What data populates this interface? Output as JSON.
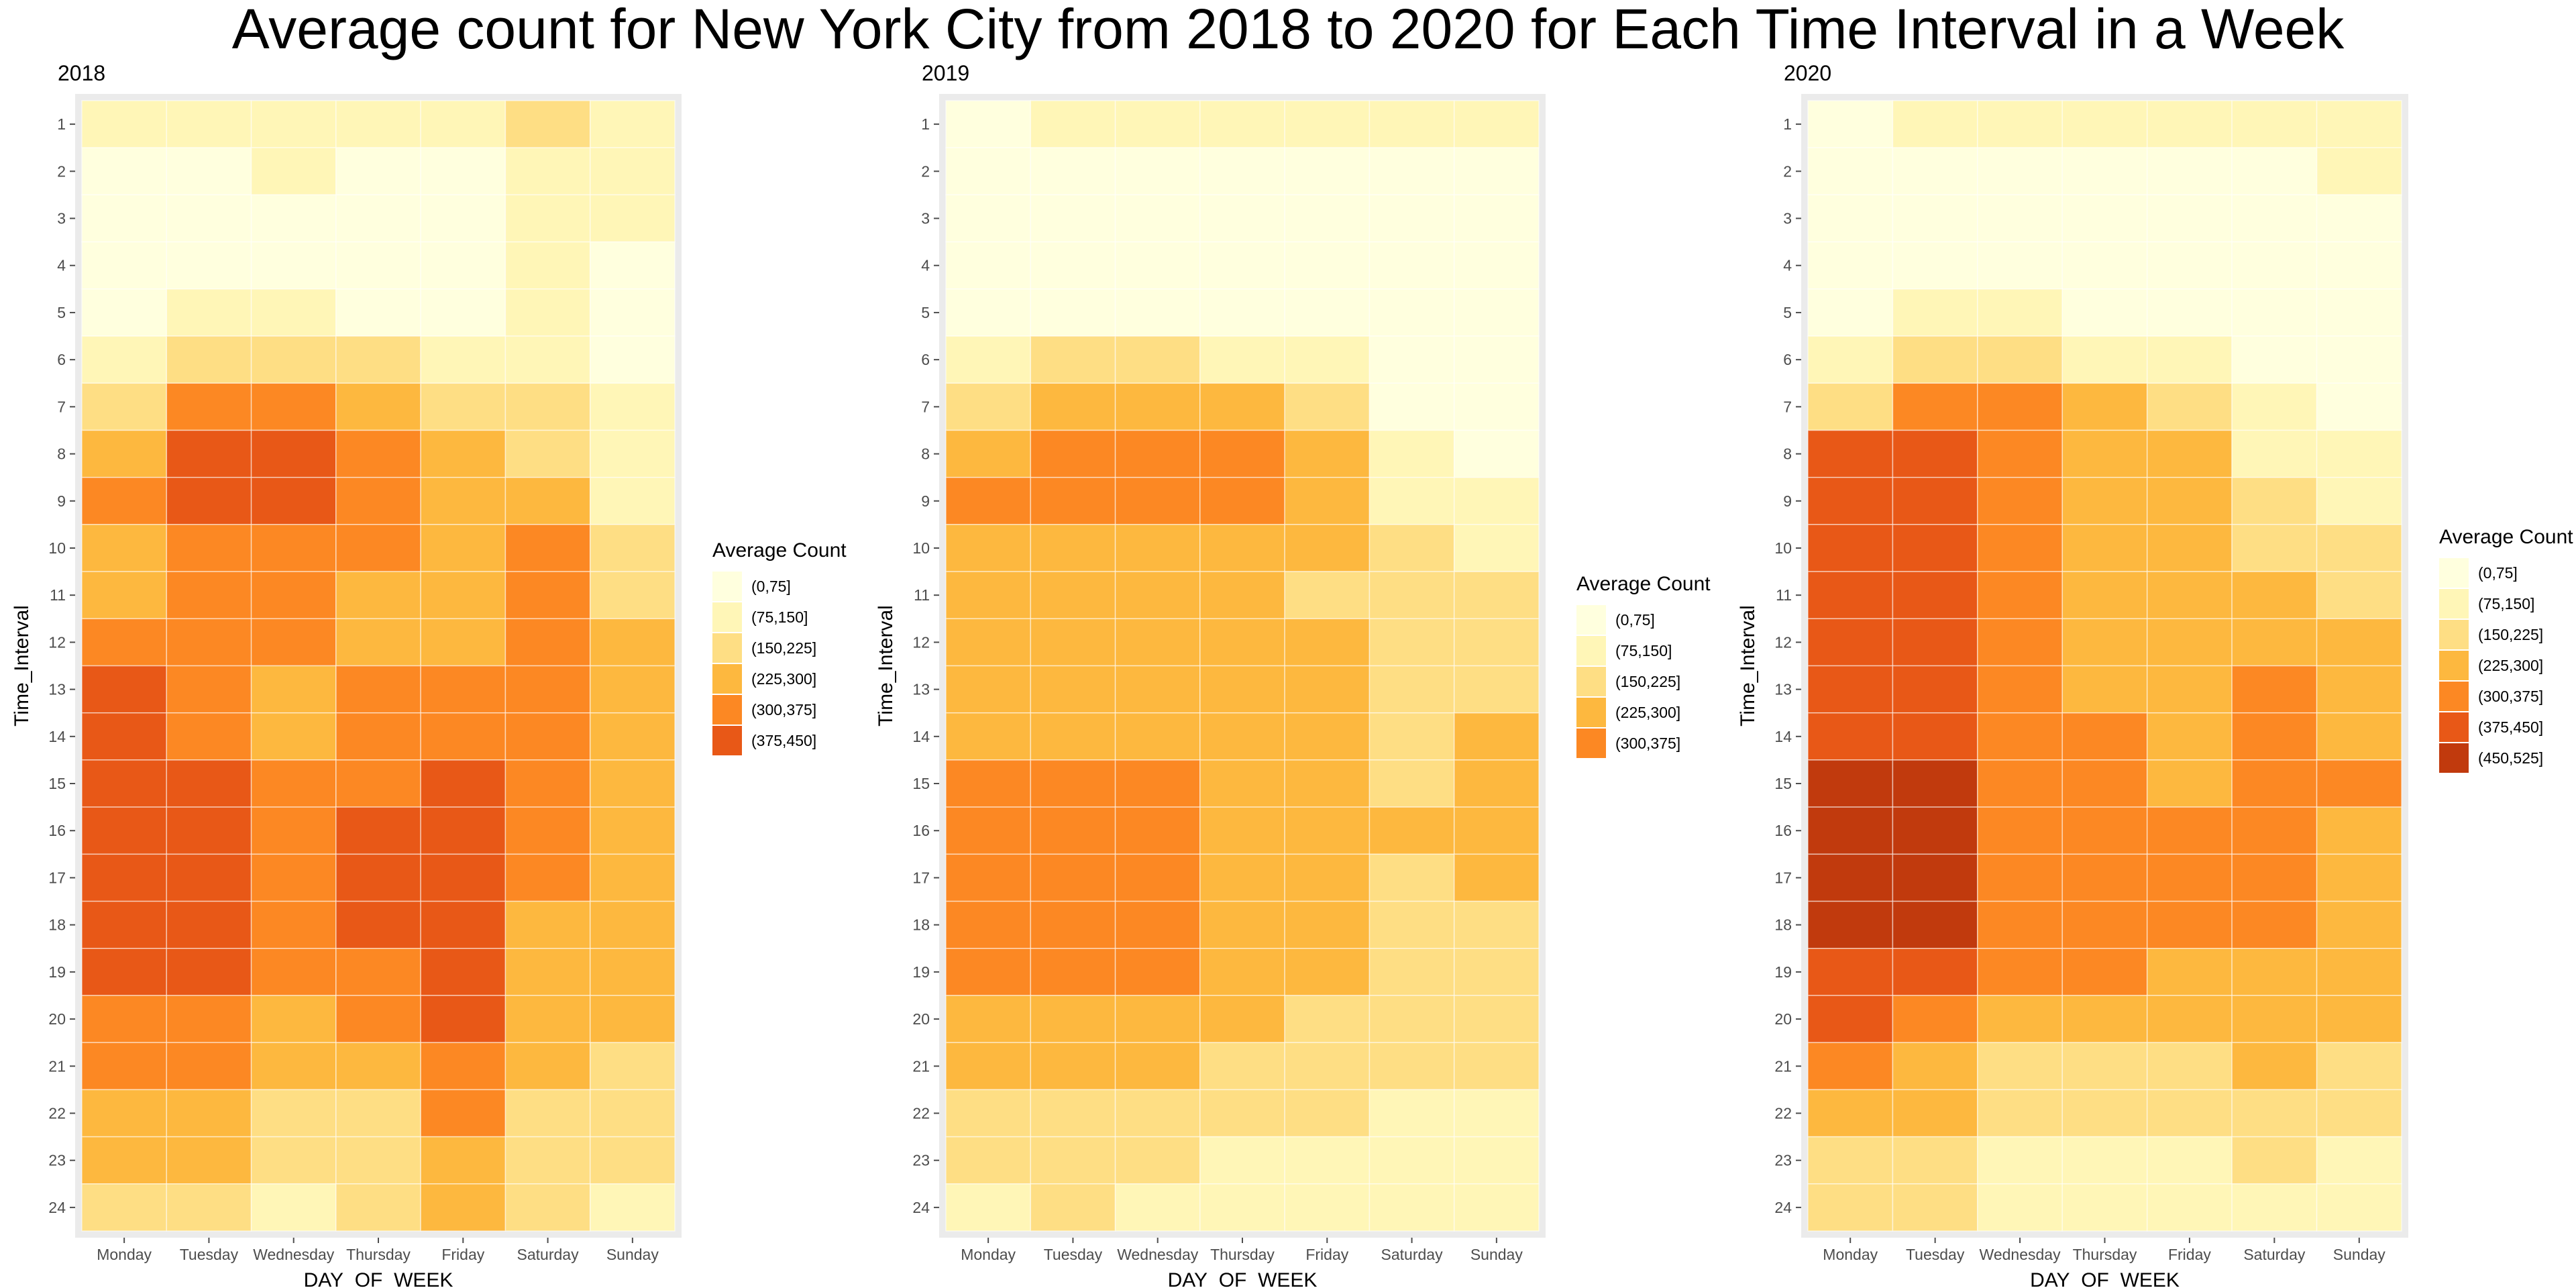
{
  "title": "Average count for New York City from 2018 to 2020 for Each Time Interval in a Week",
  "palette": {
    "(0,75]": "#ffffde",
    "(75,150]": "#fff6b7",
    "(150,225]": "#fede84",
    "(225,300]": "#fdb83f",
    "(300,375]": "#fc8823",
    "(375,450]": "#e85817",
    "(450,525]": "#c13a0d"
  },
  "chart_data": [
    {
      "type": "heatmap",
      "title": "2018",
      "xlabel": "DAY_OF_WEEK",
      "ylabel": "Time_Interval",
      "x": [
        "Monday",
        "Tuesday",
        "Wednesday",
        "Thursday",
        "Friday",
        "Saturday",
        "Sunday"
      ],
      "y": [
        "1",
        "2",
        "3",
        "4",
        "5",
        "6",
        "7",
        "8",
        "9",
        "10",
        "11",
        "12",
        "13",
        "14",
        "15",
        "16",
        "17",
        "18",
        "19",
        "20",
        "21",
        "22",
        "23",
        "24"
      ],
      "legend_title": "Average Count",
      "legend": [
        "(0,75]",
        "(75,150]",
        "(150,225]",
        "(225,300]",
        "(300,375]",
        "(375,450]"
      ],
      "legend_placement": "right",
      "grid": true,
      "values": [
        [
          "(75,150]",
          "(75,150]",
          "(75,150]",
          "(75,150]",
          "(75,150]",
          "(150,225]",
          "(75,150]"
        ],
        [
          "(0,75]",
          "(0,75]",
          "(75,150]",
          "(0,75]",
          "(0,75]",
          "(75,150]",
          "(75,150]"
        ],
        [
          "(0,75]",
          "(0,75]",
          "(0,75]",
          "(0,75]",
          "(0,75]",
          "(75,150]",
          "(75,150]"
        ],
        [
          "(0,75]",
          "(0,75]",
          "(0,75]",
          "(0,75]",
          "(0,75]",
          "(75,150]",
          "(0,75]"
        ],
        [
          "(0,75]",
          "(75,150]",
          "(75,150]",
          "(0,75]",
          "(0,75]",
          "(75,150]",
          "(0,75]"
        ],
        [
          "(75,150]",
          "(150,225]",
          "(150,225]",
          "(150,225]",
          "(75,150]",
          "(75,150]",
          "(0,75]"
        ],
        [
          "(150,225]",
          "(300,375]",
          "(300,375]",
          "(225,300]",
          "(150,225]",
          "(150,225]",
          "(75,150]"
        ],
        [
          "(225,300]",
          "(375,450]",
          "(375,450]",
          "(300,375]",
          "(225,300]",
          "(150,225]",
          "(75,150]"
        ],
        [
          "(300,375]",
          "(375,450]",
          "(375,450]",
          "(300,375]",
          "(225,300]",
          "(225,300]",
          "(75,150]"
        ],
        [
          "(225,300]",
          "(300,375]",
          "(300,375]",
          "(300,375]",
          "(225,300]",
          "(300,375]",
          "(150,225]"
        ],
        [
          "(225,300]",
          "(300,375]",
          "(300,375]",
          "(225,300]",
          "(225,300]",
          "(300,375]",
          "(150,225]"
        ],
        [
          "(300,375]",
          "(300,375]",
          "(300,375]",
          "(225,300]",
          "(225,300]",
          "(300,375]",
          "(225,300]"
        ],
        [
          "(375,450]",
          "(300,375]",
          "(225,300]",
          "(300,375]",
          "(300,375]",
          "(300,375]",
          "(225,300]"
        ],
        [
          "(375,450]",
          "(300,375]",
          "(225,300]",
          "(300,375]",
          "(300,375]",
          "(300,375]",
          "(225,300]"
        ],
        [
          "(375,450]",
          "(375,450]",
          "(300,375]",
          "(300,375]",
          "(375,450]",
          "(300,375]",
          "(225,300]"
        ],
        [
          "(375,450]",
          "(375,450]",
          "(300,375]",
          "(375,450]",
          "(375,450]",
          "(300,375]",
          "(225,300]"
        ],
        [
          "(375,450]",
          "(375,450]",
          "(300,375]",
          "(375,450]",
          "(375,450]",
          "(300,375]",
          "(225,300]"
        ],
        [
          "(375,450]",
          "(375,450]",
          "(300,375]",
          "(375,450]",
          "(375,450]",
          "(225,300]",
          "(225,300]"
        ],
        [
          "(375,450]",
          "(375,450]",
          "(300,375]",
          "(300,375]",
          "(375,450]",
          "(225,300]",
          "(225,300]"
        ],
        [
          "(300,375]",
          "(300,375]",
          "(225,300]",
          "(300,375]",
          "(375,450]",
          "(225,300]",
          "(225,300]"
        ],
        [
          "(300,375]",
          "(300,375]",
          "(225,300]",
          "(225,300]",
          "(300,375]",
          "(225,300]",
          "(150,225]"
        ],
        [
          "(225,300]",
          "(225,300]",
          "(150,225]",
          "(150,225]",
          "(300,375]",
          "(150,225]",
          "(150,225]"
        ],
        [
          "(225,300]",
          "(225,300]",
          "(150,225]",
          "(150,225]",
          "(225,300]",
          "(150,225]",
          "(150,225]"
        ],
        [
          "(150,225]",
          "(150,225]",
          "(75,150]",
          "(150,225]",
          "(225,300]",
          "(150,225]",
          "(75,150]"
        ]
      ]
    },
    {
      "type": "heatmap",
      "title": "2019",
      "xlabel": "DAY_OF_WEEK",
      "ylabel": "Time_Interval",
      "x": [
        "Monday",
        "Tuesday",
        "Wednesday",
        "Thursday",
        "Friday",
        "Saturday",
        "Sunday"
      ],
      "y": [
        "1",
        "2",
        "3",
        "4",
        "5",
        "6",
        "7",
        "8",
        "9",
        "10",
        "11",
        "12",
        "13",
        "14",
        "15",
        "16",
        "17",
        "18",
        "19",
        "20",
        "21",
        "22",
        "23",
        "24"
      ],
      "legend_title": "Average Count",
      "legend": [
        "(0,75]",
        "(75,150]",
        "(150,225]",
        "(225,300]",
        "(300,375]"
      ],
      "legend_placement": "right",
      "grid": true,
      "values": [
        [
          "(0,75]",
          "(75,150]",
          "(75,150]",
          "(75,150]",
          "(75,150]",
          "(75,150]",
          "(75,150]"
        ],
        [
          "(0,75]",
          "(0,75]",
          "(0,75]",
          "(0,75]",
          "(0,75]",
          "(0,75]",
          "(0,75]"
        ],
        [
          "(0,75]",
          "(0,75]",
          "(0,75]",
          "(0,75]",
          "(0,75]",
          "(0,75]",
          "(0,75]"
        ],
        [
          "(0,75]",
          "(0,75]",
          "(0,75]",
          "(0,75]",
          "(0,75]",
          "(0,75]",
          "(0,75]"
        ],
        [
          "(0,75]",
          "(0,75]",
          "(0,75]",
          "(0,75]",
          "(0,75]",
          "(0,75]",
          "(0,75]"
        ],
        [
          "(75,150]",
          "(150,225]",
          "(150,225]",
          "(75,150]",
          "(75,150]",
          "(0,75]",
          "(0,75]"
        ],
        [
          "(150,225]",
          "(225,300]",
          "(225,300]",
          "(225,300]",
          "(150,225]",
          "(0,75]",
          "(0,75]"
        ],
        [
          "(225,300]",
          "(300,375]",
          "(300,375]",
          "(300,375]",
          "(225,300]",
          "(75,150]",
          "(0,75]"
        ],
        [
          "(300,375]",
          "(300,375]",
          "(300,375]",
          "(300,375]",
          "(225,300]",
          "(75,150]",
          "(75,150]"
        ],
        [
          "(225,300]",
          "(225,300]",
          "(225,300]",
          "(225,300]",
          "(225,300]",
          "(150,225]",
          "(75,150]"
        ],
        [
          "(225,300]",
          "(225,300]",
          "(225,300]",
          "(225,300]",
          "(150,225]",
          "(150,225]",
          "(150,225]"
        ],
        [
          "(225,300]",
          "(225,300]",
          "(225,300]",
          "(225,300]",
          "(225,300]",
          "(150,225]",
          "(150,225]"
        ],
        [
          "(225,300]",
          "(225,300]",
          "(225,300]",
          "(225,300]",
          "(225,300]",
          "(150,225]",
          "(150,225]"
        ],
        [
          "(225,300]",
          "(225,300]",
          "(225,300]",
          "(225,300]",
          "(225,300]",
          "(150,225]",
          "(225,300]"
        ],
        [
          "(300,375]",
          "(300,375]",
          "(300,375]",
          "(225,300]",
          "(225,300]",
          "(150,225]",
          "(225,300]"
        ],
        [
          "(300,375]",
          "(300,375]",
          "(300,375]",
          "(225,300]",
          "(225,300]",
          "(225,300]",
          "(225,300]"
        ],
        [
          "(300,375]",
          "(300,375]",
          "(300,375]",
          "(225,300]",
          "(225,300]",
          "(150,225]",
          "(225,300]"
        ],
        [
          "(300,375]",
          "(300,375]",
          "(300,375]",
          "(225,300]",
          "(225,300]",
          "(150,225]",
          "(150,225]"
        ],
        [
          "(300,375]",
          "(300,375]",
          "(300,375]",
          "(225,300]",
          "(225,300]",
          "(150,225]",
          "(150,225]"
        ],
        [
          "(225,300]",
          "(225,300]",
          "(225,300]",
          "(225,300]",
          "(150,225]",
          "(150,225]",
          "(150,225]"
        ],
        [
          "(225,300]",
          "(225,300]",
          "(225,300]",
          "(150,225]",
          "(150,225]",
          "(150,225]",
          "(150,225]"
        ],
        [
          "(150,225]",
          "(150,225]",
          "(150,225]",
          "(150,225]",
          "(150,225]",
          "(75,150]",
          "(75,150]"
        ],
        [
          "(150,225]",
          "(150,225]",
          "(150,225]",
          "(75,150]",
          "(75,150]",
          "(75,150]",
          "(75,150]"
        ],
        [
          "(75,150]",
          "(150,225]",
          "(75,150]",
          "(75,150]",
          "(75,150]",
          "(75,150]",
          "(75,150]"
        ]
      ]
    },
    {
      "type": "heatmap",
      "title": "2020",
      "xlabel": "DAY_OF_WEEK",
      "ylabel": "Time_Interval",
      "x": [
        "Monday",
        "Tuesday",
        "Wednesday",
        "Thursday",
        "Friday",
        "Saturday",
        "Sunday"
      ],
      "y": [
        "1",
        "2",
        "3",
        "4",
        "5",
        "6",
        "7",
        "8",
        "9",
        "10",
        "11",
        "12",
        "13",
        "14",
        "15",
        "16",
        "17",
        "18",
        "19",
        "20",
        "21",
        "22",
        "23",
        "24"
      ],
      "legend_title": "Average Count",
      "legend": [
        "(0,75]",
        "(75,150]",
        "(150,225]",
        "(225,300]",
        "(300,375]",
        "(375,450]",
        "(450,525]"
      ],
      "legend_placement": "right",
      "grid": true,
      "values": [
        [
          "(0,75]",
          "(75,150]",
          "(75,150]",
          "(75,150]",
          "(75,150]",
          "(75,150]",
          "(75,150]"
        ],
        [
          "(0,75]",
          "(0,75]",
          "(0,75]",
          "(0,75]",
          "(0,75]",
          "(0,75]",
          "(75,150]"
        ],
        [
          "(0,75]",
          "(0,75]",
          "(0,75]",
          "(0,75]",
          "(0,75]",
          "(0,75]",
          "(0,75]"
        ],
        [
          "(0,75]",
          "(0,75]",
          "(0,75]",
          "(0,75]",
          "(0,75]",
          "(0,75]",
          "(0,75]"
        ],
        [
          "(0,75]",
          "(75,150]",
          "(75,150]",
          "(0,75]",
          "(0,75]",
          "(0,75]",
          "(0,75]"
        ],
        [
          "(75,150]",
          "(150,225]",
          "(150,225]",
          "(75,150]",
          "(75,150]",
          "(0,75]",
          "(0,75]"
        ],
        [
          "(150,225]",
          "(300,375]",
          "(300,375]",
          "(225,300]",
          "(150,225]",
          "(75,150]",
          "(0,75]"
        ],
        [
          "(375,450]",
          "(375,450]",
          "(300,375]",
          "(225,300]",
          "(225,300]",
          "(75,150]",
          "(75,150]"
        ],
        [
          "(375,450]",
          "(375,450]",
          "(300,375]",
          "(225,300]",
          "(225,300]",
          "(150,225]",
          "(75,150]"
        ],
        [
          "(375,450]",
          "(375,450]",
          "(300,375]",
          "(225,300]",
          "(225,300]",
          "(150,225]",
          "(150,225]"
        ],
        [
          "(375,450]",
          "(375,450]",
          "(300,375]",
          "(225,300]",
          "(225,300]",
          "(225,300]",
          "(150,225]"
        ],
        [
          "(375,450]",
          "(375,450]",
          "(300,375]",
          "(225,300]",
          "(225,300]",
          "(225,300]",
          "(225,300]"
        ],
        [
          "(375,450]",
          "(375,450]",
          "(300,375]",
          "(225,300]",
          "(225,300]",
          "(300,375]",
          "(225,300]"
        ],
        [
          "(375,450]",
          "(375,450]",
          "(300,375]",
          "(300,375]",
          "(225,300]",
          "(300,375]",
          "(225,300]"
        ],
        [
          "(450,525]",
          "(450,525]",
          "(300,375]",
          "(300,375]",
          "(225,300]",
          "(300,375]",
          "(300,375]"
        ],
        [
          "(450,525]",
          "(450,525]",
          "(300,375]",
          "(300,375]",
          "(300,375]",
          "(300,375]",
          "(225,300]"
        ],
        [
          "(450,525]",
          "(450,525]",
          "(300,375]",
          "(300,375]",
          "(300,375]",
          "(300,375]",
          "(225,300]"
        ],
        [
          "(450,525]",
          "(450,525]",
          "(300,375]",
          "(300,375]",
          "(300,375]",
          "(300,375]",
          "(225,300]"
        ],
        [
          "(375,450]",
          "(375,450]",
          "(300,375]",
          "(300,375]",
          "(225,300]",
          "(225,300]",
          "(225,300]"
        ],
        [
          "(375,450]",
          "(300,375]",
          "(225,300]",
          "(225,300]",
          "(225,300]",
          "(225,300]",
          "(225,300]"
        ],
        [
          "(300,375]",
          "(225,300]",
          "(150,225]",
          "(150,225]",
          "(150,225]",
          "(225,300]",
          "(150,225]"
        ],
        [
          "(225,300]",
          "(225,300]",
          "(150,225]",
          "(150,225]",
          "(150,225]",
          "(150,225]",
          "(150,225]"
        ],
        [
          "(150,225]",
          "(150,225]",
          "(75,150]",
          "(75,150]",
          "(75,150]",
          "(150,225]",
          "(75,150]"
        ],
        [
          "(150,225]",
          "(150,225]",
          "(75,150]",
          "(75,150]",
          "(75,150]",
          "(75,150]",
          "(75,150]"
        ]
      ]
    }
  ]
}
